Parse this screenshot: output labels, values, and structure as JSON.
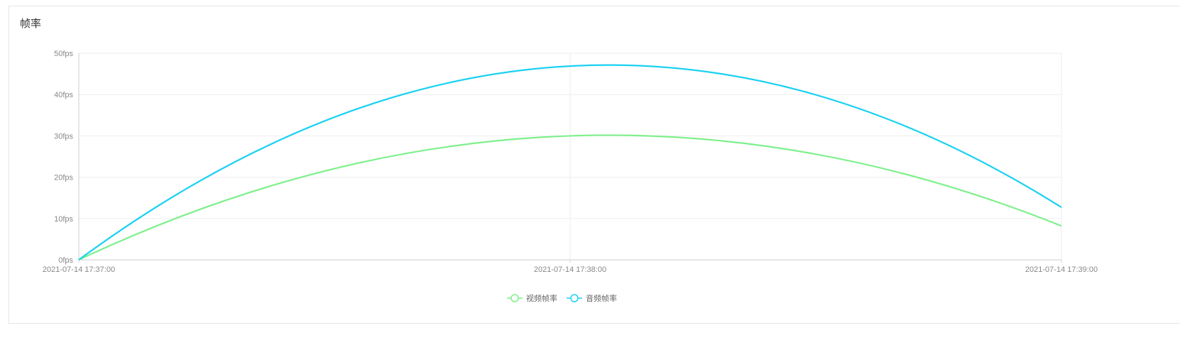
{
  "panel": {
    "title": "帧率"
  },
  "chart_data": {
    "type": "line",
    "title": "帧率",
    "x": [
      "2021-07-14 17:37:00",
      "2021-07-14 17:38:00",
      "2021-07-14 17:39:00"
    ],
    "x_ticks": [
      "2021-07-14 17:37:00",
      "2021-07-14 17:38:00",
      "2021-07-14 17:39:00"
    ],
    "y_ticks": [
      "0fps",
      "10fps",
      "20fps",
      "30fps",
      "40fps",
      "50fps"
    ],
    "ylim": [
      0,
      50
    ],
    "smooth": true,
    "grid": true,
    "legend_position": "bottom-center",
    "series": [
      {
        "name": "视频帧率",
        "values": [
          0,
          30,
          8.2
        ],
        "color": "#7ef08c"
      },
      {
        "name": "音频帧率",
        "values": [
          0,
          46.9,
          12.7
        ],
        "color": "#1ad1f2"
      }
    ]
  }
}
